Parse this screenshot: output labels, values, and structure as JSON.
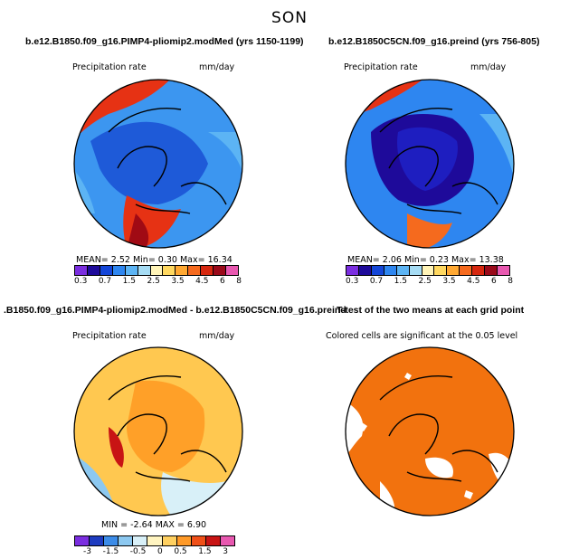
{
  "season": "SON",
  "panels": [
    {
      "title": "b.e12.B1850.f09_g16.PIMP4-pliomip2.modMed (yrs 1150-1199)",
      "var": "Precipitation rate",
      "units": "mm/day",
      "stats": "MEAN=    2.52   Min=    0.30   Max=   16.34",
      "ticks": [
        "0.3",
        "0.7",
        "1.5",
        "2.5",
        "3.5",
        "4.5",
        "6",
        "8"
      ]
    },
    {
      "title": "b.e12.B1850C5CN.f09_g16.preind (yrs 756-805)",
      "var": "Precipitation rate",
      "units": "mm/day",
      "stats": "MEAN=    2.06   Min=    0.23   Max=   13.38",
      "ticks": [
        "0.3",
        "0.7",
        "1.5",
        "2.5",
        "3.5",
        "4.5",
        "6",
        "8"
      ]
    },
    {
      "title": ".B1850.f09_g16.PIMP4-pliomip2.modMed - b.e12.B1850C5CN.f09_g16.preind",
      "var": "Precipitation rate",
      "units": "mm/day",
      "stats": "MIN =  -2.64  MAX =    6.90",
      "ticks": [
        "-3",
        "-1.5",
        "-0.5",
        "0",
        "0.5",
        "1.5",
        "3"
      ]
    },
    {
      "title": "T-test of the two means at each grid point",
      "subtitle": "Colored cells are significant at the 0.05 level"
    }
  ],
  "colors": {
    "abs_scale": [
      "#7b2ee0",
      "#1e0a9a",
      "#1446d8",
      "#2e86f0",
      "#5cb4f4",
      "#a6dcf4",
      "#fff4b8",
      "#ffd860",
      "#ffa832",
      "#f56a1e",
      "#d62810",
      "#9a0a1a",
      "#e858b0"
    ],
    "diff_scale": [
      "#7b2ee0",
      "#1e3cc0",
      "#3c8ce8",
      "#8cc8f0",
      "#d8f0f8",
      "#fff4c0",
      "#ffd060",
      "#ff9a28",
      "#f05018",
      "#c81414",
      "#e858b0"
    ],
    "ttest": "#f2720e"
  }
}
